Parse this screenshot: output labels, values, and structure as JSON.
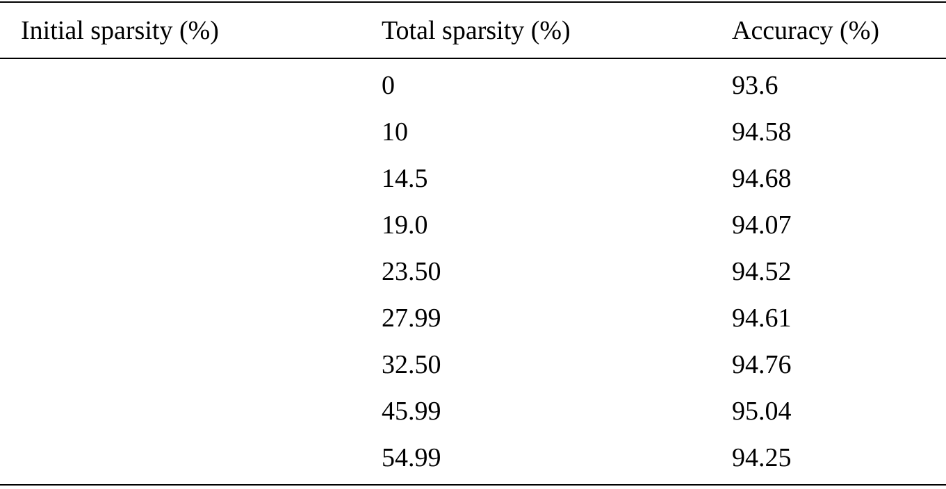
{
  "table": {
    "headers": {
      "initial_sparsity": "Initial sparsity (%)",
      "total_sparsity": "Total sparsity (%)",
      "accuracy": "Accuracy (%)"
    },
    "rows": [
      {
        "initial": "",
        "total": "0",
        "accuracy": "93.6"
      },
      {
        "initial": "",
        "total": "10",
        "accuracy": "94.58"
      },
      {
        "initial": "",
        "total": "14.5",
        "accuracy": "94.68"
      },
      {
        "initial": "",
        "total": "19.0",
        "accuracy": "94.07"
      },
      {
        "initial": "",
        "total": "23.50",
        "accuracy": "94.52"
      },
      {
        "initial": "",
        "total": "27.99",
        "accuracy": "94.61"
      },
      {
        "initial": "",
        "total": "32.50",
        "accuracy": "94.76"
      },
      {
        "initial": "",
        "total": "45.99",
        "accuracy": "95.04"
      },
      {
        "initial": "",
        "total": "54.99",
        "accuracy": "94.25"
      }
    ]
  }
}
